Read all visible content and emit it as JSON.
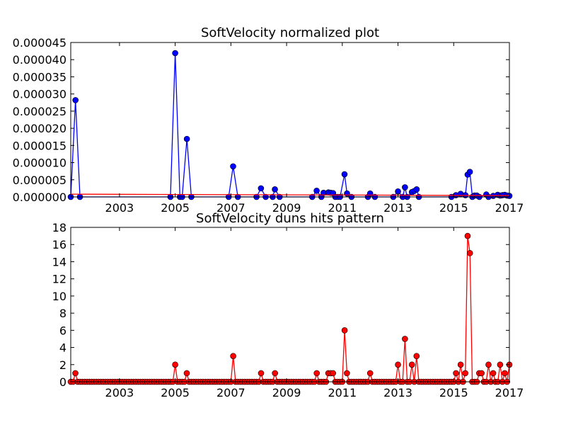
{
  "chart_data": [
    {
      "type": "line",
      "title": "SoftVelocity normalized plot",
      "xlabel": "",
      "ylabel": "",
      "x_range": [
        2001.25,
        2017.0
      ],
      "ylim": [
        0,
        4.5e-05
      ],
      "x_ticks": [
        2003,
        2005,
        2007,
        2009,
        2011,
        2013,
        2015,
        2017
      ],
      "x_tick_labels": [
        "2003",
        "2005",
        "2007",
        "2009",
        "2011",
        "2013",
        "2015",
        "2017"
      ],
      "y_ticks": [
        0,
        5e-06,
        1e-05,
        1.5e-05,
        2e-05,
        2.5e-05,
        3e-05,
        3.5e-05,
        4e-05,
        4.5e-05
      ],
      "y_tick_labels": [
        "0.000000",
        "0.000005",
        "0.000010",
        "0.000015",
        "0.000020",
        "0.000025",
        "0.000030",
        "0.000035",
        "0.000040",
        "0.000045"
      ],
      "grid": false,
      "series": [
        {
          "color": "#0000ff",
          "marker_fill": "#0000ff",
          "marker": "circle",
          "x": [
            2001.25,
            2001.42,
            2001.58,
            2004.83,
            2005.0,
            2005.17,
            2005.25,
            2005.42,
            2005.58,
            2006.92,
            2007.08,
            2007.25,
            2007.92,
            2008.08,
            2008.25,
            2008.5,
            2008.58,
            2008.75,
            2009.92,
            2010.08,
            2010.25,
            2010.33,
            2010.5,
            2010.58,
            2010.67,
            2010.75,
            2010.83,
            2010.92,
            2011.08,
            2011.17,
            2011.33,
            2011.92,
            2012.0,
            2012.17,
            2012.83,
            2013.0,
            2013.17,
            2013.25,
            2013.33,
            2013.5,
            2013.58,
            2013.67,
            2013.75,
            2014.92,
            2015.08,
            2015.25,
            2015.42,
            2015.5,
            2015.58,
            2015.67,
            2015.75,
            2015.83,
            2015.92,
            2016.17,
            2016.25,
            2016.42,
            2016.58,
            2016.67,
            2016.75,
            2016.83,
            2016.92,
            2017.0
          ],
          "y": [
            0,
            2.82e-05,
            0,
            0,
            4.19e-05,
            0,
            0,
            1.69e-05,
            0,
            0,
            8.9e-06,
            0,
            0,
            2.5e-06,
            0,
            0,
            2.2e-06,
            0,
            0,
            1.8e-06,
            0,
            1.2e-06,
            1.3e-06,
            1.2e-06,
            1.1e-06,
            0,
            0,
            0,
            6.6e-06,
            1e-06,
            0,
            0,
            1e-06,
            0,
            0,
            1.6e-06,
            0,
            2.8e-06,
            0,
            1.4e-06,
            1.7e-06,
            2.2e-06,
            0,
            0,
            5e-07,
            9e-07,
            5e-07,
            6.5e-06,
            7.3e-06,
            0,
            4e-07,
            4e-07,
            0,
            7e-07,
            0,
            3e-07,
            6e-07,
            4e-07,
            5e-07,
            6e-07,
            4e-07,
            3e-07
          ]
        },
        {
          "color": "#ff0000",
          "marker": "none",
          "x": [
            2001.25,
            2017.0
          ],
          "y": [
            8e-07,
            4e-07
          ]
        }
      ]
    },
    {
      "type": "line",
      "title": "SoftVelocity duns hits pattern",
      "xlabel": "",
      "ylabel": "",
      "x_range": [
        2001.25,
        2017.0
      ],
      "ylim": [
        0,
        18
      ],
      "x_ticks": [
        2003,
        2005,
        2007,
        2009,
        2011,
        2013,
        2015,
        2017
      ],
      "x_tick_labels": [
        "2003",
        "2005",
        "2007",
        "2009",
        "2011",
        "2013",
        "2015",
        "2017"
      ],
      "y_ticks": [
        0,
        2,
        4,
        6,
        8,
        10,
        12,
        14,
        16,
        18
      ],
      "y_tick_labels": [
        "0",
        "2",
        "4",
        "6",
        "8",
        "10",
        "12",
        "14",
        "16",
        "18"
      ],
      "grid": false,
      "series": [
        {
          "color": "#ff0000",
          "marker_fill": "#ff0000",
          "marker": "circle",
          "step": 0.0833333,
          "x_start": 2001.25,
          "x_end": 2017.0,
          "nonzero": [
            [
              2001.42,
              1
            ],
            [
              2005.0,
              2
            ],
            [
              2005.42,
              1
            ],
            [
              2007.08,
              3
            ],
            [
              2008.08,
              1
            ],
            [
              2008.58,
              1
            ],
            [
              2010.08,
              1
            ],
            [
              2010.5,
              1
            ],
            [
              2010.58,
              1
            ],
            [
              2010.67,
              1
            ],
            [
              2011.08,
              6
            ],
            [
              2011.17,
              1
            ],
            [
              2012.0,
              1
            ],
            [
              2013.0,
              2
            ],
            [
              2013.25,
              5
            ],
            [
              2013.5,
              2
            ],
            [
              2013.67,
              3
            ],
            [
              2015.08,
              1
            ],
            [
              2015.25,
              2
            ],
            [
              2015.42,
              1
            ],
            [
              2015.5,
              17
            ],
            [
              2015.58,
              15
            ],
            [
              2015.92,
              1
            ],
            [
              2016.0,
              1
            ],
            [
              2016.25,
              2
            ],
            [
              2016.42,
              1
            ],
            [
              2016.67,
              2
            ],
            [
              2016.83,
              1
            ],
            [
              2017.0,
              2
            ]
          ]
        }
      ]
    }
  ]
}
